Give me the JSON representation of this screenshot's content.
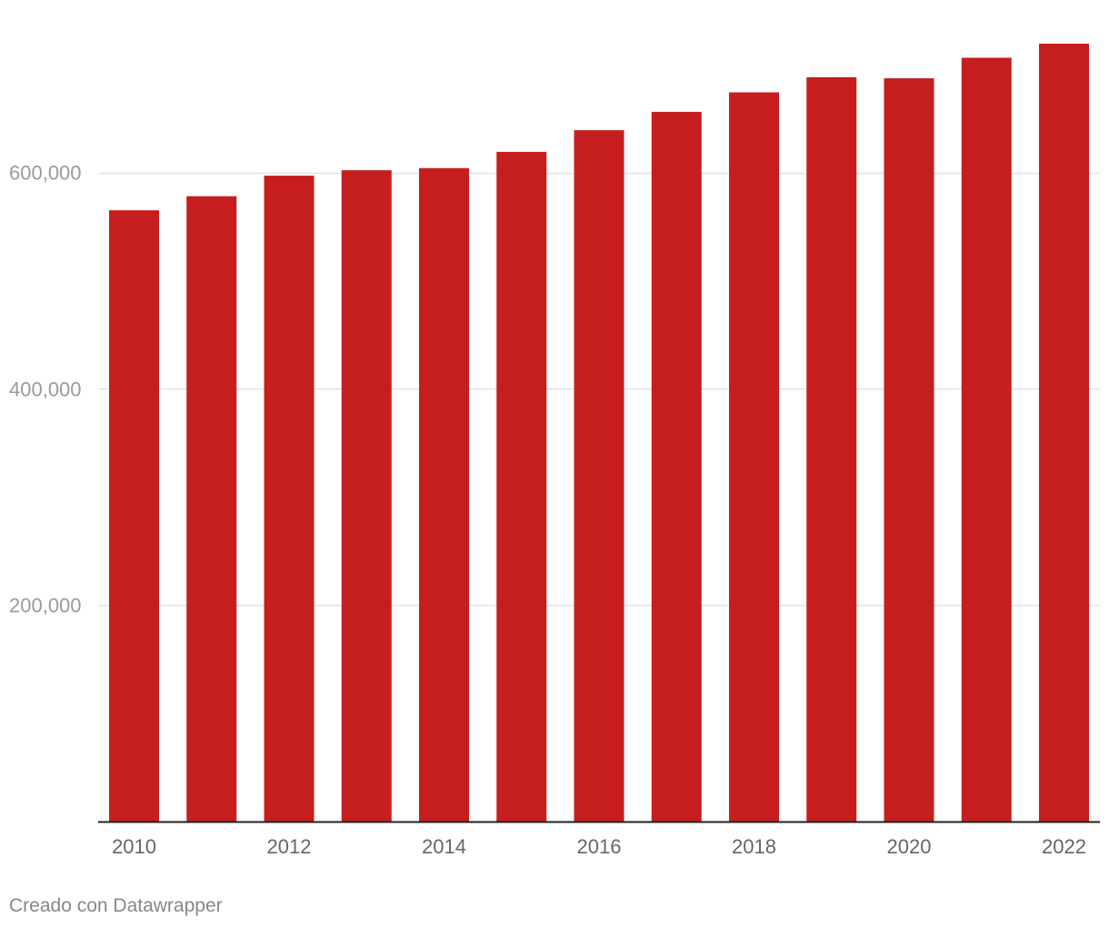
{
  "chart_data": {
    "type": "bar",
    "title": "",
    "xlabel": "",
    "ylabel": "",
    "categories": [
      "2010",
      "2011",
      "2012",
      "2013",
      "2014",
      "2015",
      "2016",
      "2017",
      "2018",
      "2019",
      "2020",
      "2021",
      "2022"
    ],
    "values": [
      565000,
      578000,
      597000,
      602000,
      604000,
      619000,
      639000,
      656000,
      674000,
      688000,
      687000,
      706000,
      719000
    ],
    "x_tick_labels": [
      "2010",
      "2012",
      "2014",
      "2016",
      "2018",
      "2020",
      "2022"
    ],
    "y_ticks": [
      200000,
      400000,
      600000
    ],
    "y_tick_labels": [
      "200,000",
      "400,000",
      "600,000"
    ],
    "ylim": [
      0,
      719000
    ],
    "grid": true,
    "legend": "none",
    "colors": {
      "bar": "#c61e1e",
      "grid": "#e3e3e3",
      "axis": "#222222",
      "tick_text": "#9a9a9a",
      "x_tick_text": "#666666"
    }
  },
  "footer": {
    "credit": "Creado con Datawrapper"
  }
}
